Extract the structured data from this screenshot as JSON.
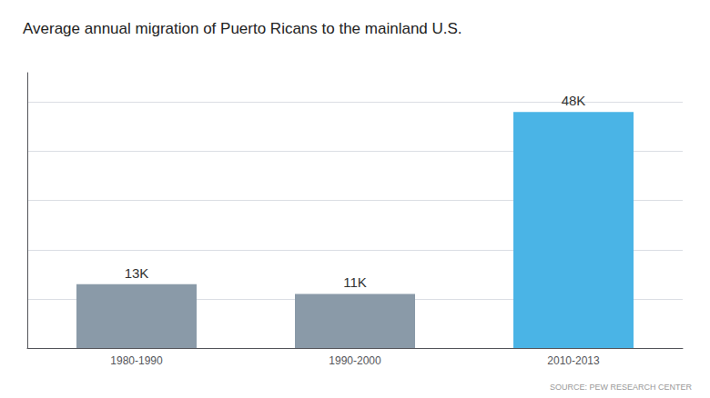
{
  "chart_data": {
    "type": "bar",
    "title": "Average annual migration of Puerto Ricans to the mainland U.S.",
    "categories": [
      "1980-1990",
      "1990-2000",
      "2010-2013"
    ],
    "values": [
      13,
      11,
      48
    ],
    "value_labels": [
      "13K",
      "11K",
      "48K"
    ],
    "data_labels": true,
    "colors": [
      "#8a9aa8",
      "#8a9aa8",
      "#4ab4e6"
    ],
    "ylim": [
      0,
      56
    ],
    "yticks": [
      0,
      10,
      20,
      30,
      40,
      50
    ],
    "grid": true,
    "tick_labels": "x",
    "annotations": [
      "SOURCE: PEW RESEARCH CENTER"
    ]
  }
}
